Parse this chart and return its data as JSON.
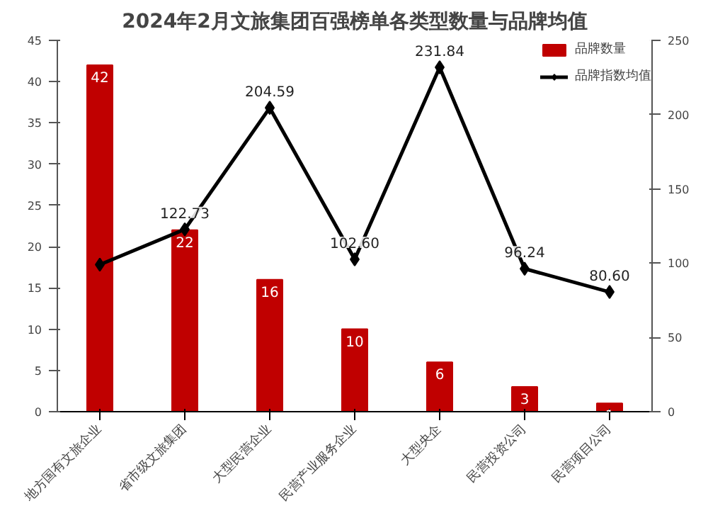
{
  "chart_data": {
    "type": "bar",
    "title": "2024年2月文旅集团百强榜单各类型数量与品牌均值",
    "categories": [
      "地方国有文旅企业",
      "省市级文旅集团",
      "大型民营企业",
      "民营产业服务企业",
      "大型央企",
      "民营投资公司",
      "民营项目公司"
    ],
    "series": [
      {
        "name": "品牌数量",
        "color": "#c00000",
        "values": [
          42,
          22,
          16,
          10,
          6,
          3,
          1
        ],
        "data_labels": true
      },
      {
        "name": "品牌指数均值",
        "type": "line",
        "axis": "y2",
        "color": "#000000",
        "marker": "diamond",
        "values": [
          99,
          122.73,
          204.59,
          102.6,
          231.84,
          96.24,
          80.6
        ],
        "value_labels": [
          null,
          "122.73",
          "204.59",
          "102.60",
          "231.84",
          "96.24",
          "80.60"
        ]
      }
    ],
    "ylim": [
      0,
      45
    ],
    "yticks": [
      0,
      5,
      10,
      15,
      20,
      25,
      30,
      35,
      40,
      45
    ],
    "y2lim": [
      0,
      250
    ],
    "y2ticks": [
      0,
      50,
      100,
      150,
      200,
      250
    ],
    "grid": false,
    "legend": "top"
  }
}
